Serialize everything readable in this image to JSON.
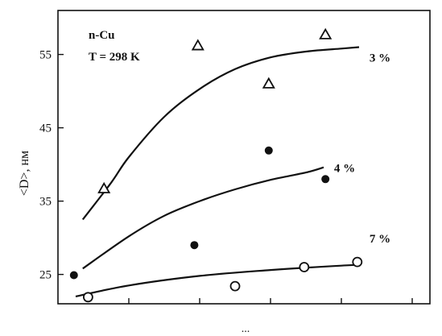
{
  "chart_data": {
    "type": "scatter",
    "ylabel": "<D>, нм",
    "xlabel": "...",
    "xlim": [
      0,
      1.05
    ],
    "ylim": [
      21,
      61
    ],
    "yticks": [
      25,
      35,
      45,
      55
    ],
    "xticks": [
      0.2,
      0.4,
      0.6,
      0.8,
      1.0
    ],
    "grid": false,
    "annotations": [
      "n-Cu",
      "T = 298 K"
    ],
    "series": [
      {
        "name": "3 %",
        "marker": "triangle",
        "points": [
          [
            0.13,
            36.7
          ],
          [
            0.395,
            56.2
          ],
          [
            0.595,
            51.0
          ],
          [
            0.755,
            57.7
          ]
        ],
        "curve": [
          [
            0.07,
            32.5
          ],
          [
            0.15,
            37.5
          ],
          [
            0.2,
            41.0
          ],
          [
            0.3,
            46.5
          ],
          [
            0.4,
            50.3
          ],
          [
            0.5,
            53.0
          ],
          [
            0.6,
            54.6
          ],
          [
            0.7,
            55.4
          ],
          [
            0.8,
            55.8
          ],
          [
            0.85,
            56.0
          ]
        ]
      },
      {
        "name": "4 %",
        "marker": "filled-circle",
        "points": [
          [
            0.045,
            24.9
          ],
          [
            0.385,
            29.0
          ],
          [
            0.595,
            41.9
          ],
          [
            0.755,
            38.0
          ]
        ],
        "curve": [
          [
            0.07,
            25.8
          ],
          [
            0.2,
            30.2
          ],
          [
            0.3,
            33.0
          ],
          [
            0.4,
            35.0
          ],
          [
            0.5,
            36.6
          ],
          [
            0.6,
            37.9
          ],
          [
            0.7,
            38.9
          ],
          [
            0.75,
            39.6
          ]
        ]
      },
      {
        "name": "7 %",
        "marker": "open-circle",
        "points": [
          [
            0.085,
            21.9
          ],
          [
            0.5,
            23.4
          ],
          [
            0.695,
            26.0
          ],
          [
            0.845,
            26.7
          ]
        ],
        "curve": [
          [
            0.05,
            22.0
          ],
          [
            0.2,
            23.5
          ],
          [
            0.4,
            24.8
          ],
          [
            0.6,
            25.6
          ],
          [
            0.8,
            26.2
          ],
          [
            0.85,
            26.3
          ]
        ]
      }
    ]
  }
}
